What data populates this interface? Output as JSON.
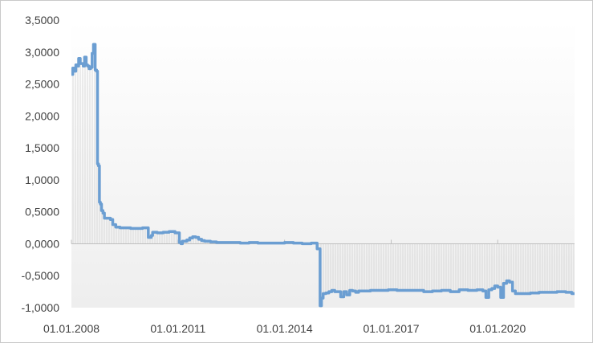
{
  "chart_data": {
    "type": "line",
    "title": "",
    "xlabel": "",
    "ylabel": "",
    "ylim": [
      -1.0,
      3.5
    ],
    "xlim": [
      "2008-01-01",
      "2022-03-01"
    ],
    "y_ticks": [
      3.5,
      3.0,
      2.5,
      2.0,
      1.5,
      1.0,
      0.5,
      0.0,
      -0.5,
      -1.0
    ],
    "y_tick_labels": [
      "3,5000",
      "3,0000",
      "2,5000",
      "2,0000",
      "1,5000",
      "1,0000",
      "0,5000",
      "0,0000",
      "-0,5000",
      "-1,0000"
    ],
    "x_tick_labels": [
      "01.01.2008",
      "01.01.2011",
      "01.01.2014",
      "01.01.2017",
      "01.01.2020"
    ],
    "x_ticks": [
      "2008-01-01",
      "2011-01-01",
      "2014-01-01",
      "2017-01-01",
      "2020-01-01"
    ],
    "line_color": "#6b9ed2",
    "series": [
      {
        "x": [
          "2008-01-01",
          "2008-01-15",
          "2008-02-01",
          "2008-02-15",
          "2008-03-01",
          "2008-03-15",
          "2008-04-01",
          "2008-05-01",
          "2008-05-15",
          "2008-06-01",
          "2008-06-15",
          "2008-07-01",
          "2008-07-15",
          "2008-08-01",
          "2008-08-15",
          "2008-09-01",
          "2008-09-15",
          "2008-09-25",
          "2008-10-05",
          "2008-10-15",
          "2008-10-25",
          "2008-11-05",
          "2008-11-20",
          "2008-12-05",
          "2008-12-20",
          "2009-01-15",
          "2009-02-05",
          "2009-03-01",
          "2009-04-01",
          "2009-05-15",
          "2009-07-01",
          "2009-09-01",
          "2009-11-01",
          "2010-01-01",
          "2010-03-01",
          "2010-04-01",
          "2010-04-15",
          "2010-05-01",
          "2010-06-01",
          "2010-08-01",
          "2010-10-01",
          "2010-12-01",
          "2011-01-15",
          "2011-02-01",
          "2011-02-15",
          "2011-04-01",
          "2011-05-01",
          "2011-06-01",
          "2011-07-01",
          "2011-08-01",
          "2011-09-01",
          "2011-10-01",
          "2011-12-01",
          "2012-02-01",
          "2012-04-01",
          "2012-06-01",
          "2012-08-01",
          "2012-10-01",
          "2013-01-01",
          "2013-04-01",
          "2013-07-01",
          "2013-10-01",
          "2014-01-01",
          "2014-04-01",
          "2014-07-01",
          "2014-10-01",
          "2014-12-01",
          "2015-01-01",
          "2015-01-15",
          "2015-02-01",
          "2015-03-01",
          "2015-04-01",
          "2015-05-01",
          "2015-06-01",
          "2015-08-01",
          "2015-09-01",
          "2015-10-01",
          "2015-11-01",
          "2015-12-01",
          "2016-01-01",
          "2016-02-01",
          "2016-04-01",
          "2016-06-01",
          "2016-09-01",
          "2016-12-01",
          "2017-03-01",
          "2017-06-01",
          "2017-09-01",
          "2017-12-01",
          "2018-03-01",
          "2018-06-01",
          "2018-09-01",
          "2018-12-01",
          "2019-03-01",
          "2019-06-01",
          "2019-08-01",
          "2019-09-01",
          "2019-10-01",
          "2019-11-01",
          "2019-12-01",
          "2020-01-01",
          "2020-02-01",
          "2020-03-01",
          "2020-04-01",
          "2020-05-01",
          "2020-06-01",
          "2020-07-01",
          "2020-09-01",
          "2020-12-01",
          "2021-03-01",
          "2021-06-01",
          "2021-09-01",
          "2021-12-01",
          "2022-02-01"
        ],
        "y": [
          2.65,
          2.75,
          2.7,
          2.8,
          2.78,
          2.9,
          2.82,
          2.78,
          2.92,
          2.8,
          2.78,
          2.74,
          2.76,
          2.98,
          3.12,
          2.72,
          2.7,
          1.25,
          1.22,
          0.65,
          0.62,
          0.52,
          0.48,
          0.4,
          0.4,
          0.4,
          0.38,
          0.3,
          0.26,
          0.25,
          0.25,
          0.24,
          0.24,
          0.25,
          0.1,
          0.13,
          0.18,
          0.18,
          0.17,
          0.18,
          0.19,
          0.17,
          0.02,
          0.0,
          0.04,
          0.06,
          0.09,
          0.11,
          0.1,
          0.07,
          0.05,
          0.04,
          0.03,
          0.02,
          0.02,
          0.02,
          0.02,
          0.01,
          0.02,
          0.01,
          0.01,
          0.01,
          0.02,
          0.01,
          0.0,
          0.01,
          -0.08,
          -0.97,
          -0.85,
          -0.78,
          -0.77,
          -0.75,
          -0.73,
          -0.75,
          -0.83,
          -0.75,
          -0.8,
          -0.73,
          -0.74,
          -0.76,
          -0.74,
          -0.74,
          -0.73,
          -0.73,
          -0.72,
          -0.73,
          -0.73,
          -0.73,
          -0.75,
          -0.74,
          -0.73,
          -0.75,
          -0.72,
          -0.73,
          -0.72,
          -0.74,
          -0.84,
          -0.72,
          -0.7,
          -0.66,
          -0.68,
          -0.84,
          -0.62,
          -0.58,
          -0.6,
          -0.74,
          -0.78,
          -0.78,
          -0.77,
          -0.76,
          -0.76,
          -0.75,
          -0.76,
          -0.78
        ]
      }
    ]
  }
}
